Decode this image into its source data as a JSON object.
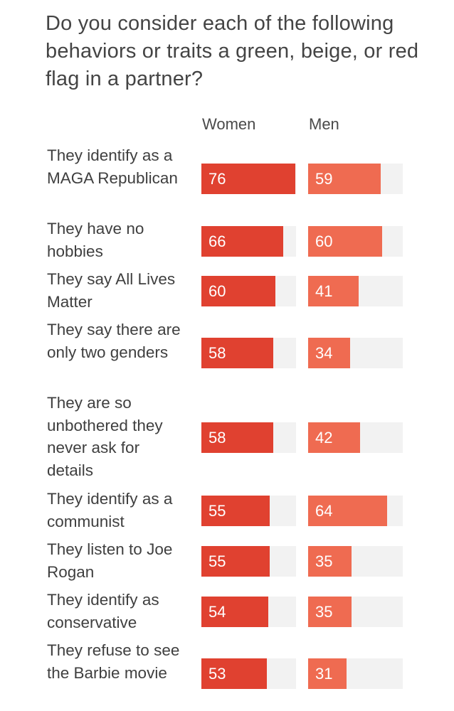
{
  "title": "Do you consider each of the following behaviors or traits a green, beige, or red flag in a partner?",
  "colors": {
    "women_bar": "#e04130",
    "men_bar": "#ef6b51",
    "track": "#f2f2f2"
  },
  "chart_data": {
    "type": "bar",
    "orientation": "horizontal",
    "title": "Do you consider each of the following behaviors or traits a green, beige, or red flag in a partner?",
    "xlim": [
      0,
      100
    ],
    "categories": [
      "They identify as a MAGA Republican",
      "They have no hobbies",
      "They say All Lives Matter",
      "They say there are only two genders",
      "They are so unbothered they never ask for details",
      "They identify as a communist",
      "They listen to Joe Rogan",
      "They identify as conservative",
      "They refuse to see the Barbie movie"
    ],
    "series": [
      {
        "name": "Women",
        "values": [
          76,
          66,
          60,
          58,
          58,
          55,
          55,
          54,
          53
        ]
      },
      {
        "name": "Men",
        "values": [
          59,
          60,
          41,
          34,
          42,
          64,
          35,
          35,
          31
        ]
      }
    ]
  }
}
